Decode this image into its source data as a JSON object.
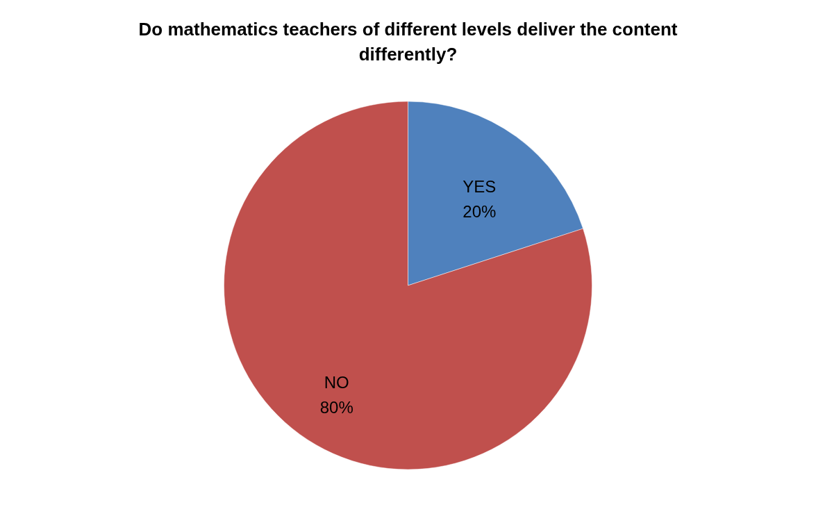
{
  "chart_data": {
    "type": "pie",
    "title": "Do mathematics teachers  of different levels deliver the content differently?",
    "categories": [
      "YES",
      "NO"
    ],
    "values": [
      20,
      80
    ],
    "colors": [
      "#4f81bd",
      "#c0504d"
    ],
    "value_labels": [
      "20%",
      "80%"
    ]
  }
}
